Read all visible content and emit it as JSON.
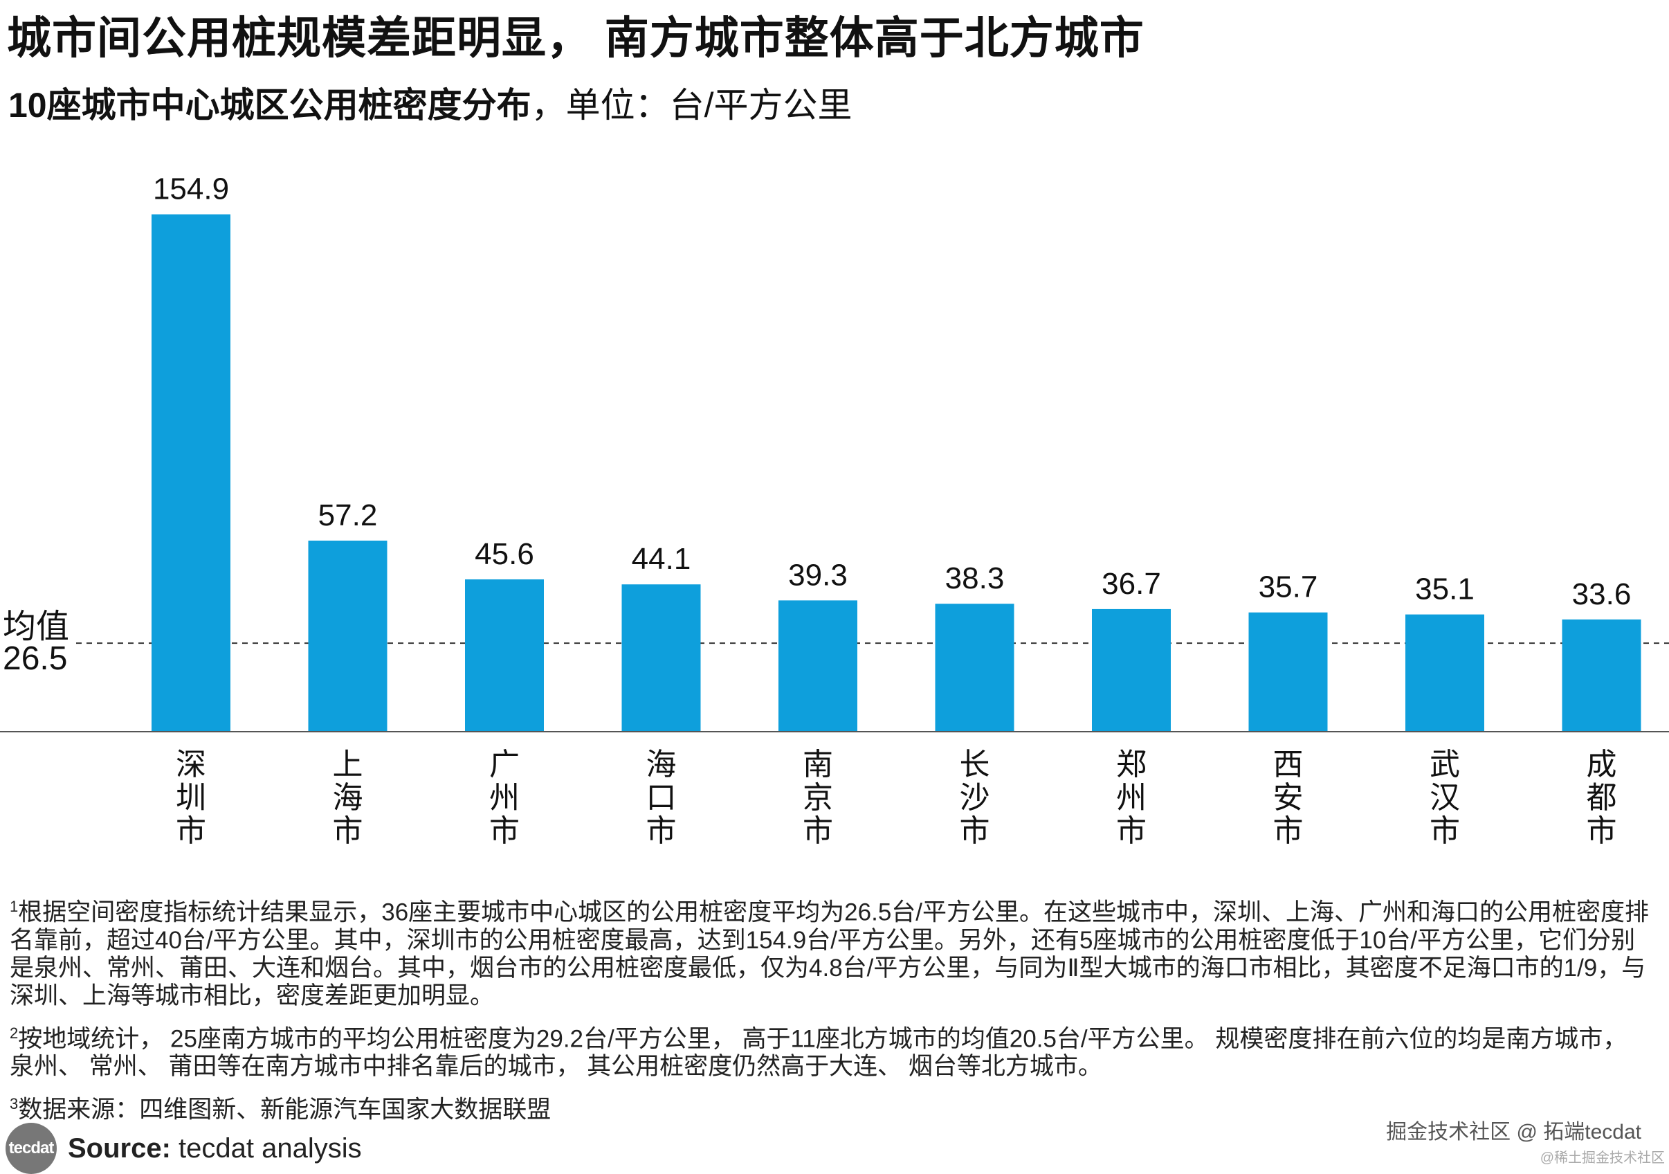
{
  "header": {
    "title": "城市间公用桩规模差距明显， 南方城市整体高于北方城市",
    "subtitle_bold": "10座城市中心城区公用桩密度分布",
    "subtitle_rest": "，单位：台/平方公里"
  },
  "chart_data": {
    "type": "bar",
    "categories": [
      "深圳市",
      "上海市",
      "广州市",
      "海口市",
      "南京市",
      "长沙市",
      "郑州市",
      "西安市",
      "武汉市",
      "成都市"
    ],
    "values": [
      154.9,
      57.2,
      45.6,
      44.1,
      39.3,
      38.3,
      36.7,
      35.7,
      35.1,
      33.6
    ],
    "value_labels": [
      "154.9",
      "57.2",
      "45.6",
      "44.1",
      "39.3",
      "38.3",
      "36.7",
      "35.7",
      "35.1",
      "33.6"
    ],
    "reference_line": {
      "label_top": "均值",
      "label_bottom": "26.5",
      "value": 26.5
    },
    "ylim": [
      0,
      160
    ],
    "bar_color": "#0e9fdc",
    "title": "10座城市中心城区公用桩密度分布",
    "ylabel": "台/平方公里"
  },
  "notes": [
    {
      "num": "1",
      "text": "根据空间密度指标统计结果显示，36座主要城市中心城区的公用桩密度平均为26.5台/平方公里。在这些城市中，深圳、上海、广州和海口的公用桩密度排名靠前，超过40台/平方公里。其中，深圳市的公用桩密度最高，达到154.9台/平方公里。另外，还有5座城市的公用桩密度低于10台/平方公里，它们分别是泉州、常州、莆田、大连和烟台。其中，烟台市的公用桩密度最低，仅为4.8台/平方公里，与同为Ⅱ型大城市的海口市相比，其密度不足海口市的1/9，与深圳、上海等城市相比，密度差距更加明显。"
    },
    {
      "num": "2",
      "text": "按地域统计， 25座南方城市的平均公用桩密度为29.2台/平方公里， 高于11座北方城市的均值20.5台/平方公里。 规模密度排在前六位的均是南方城市， 泉州、 常州、 莆田等在南方城市中排名靠后的城市， 其公用桩密度仍然高于大连、 烟台等北方城市。"
    },
    {
      "num": "3",
      "text": "数据来源：四维图新、新能源汽车国家大数据联盟"
    }
  ],
  "footer": {
    "logo_text": "tecdat",
    "source_label": "Source:",
    "source_text": " tecdat analysis",
    "watermark_main": "掘金技术社区 @ 拓端tecdat",
    "watermark_small": "@稀土掘金技术社区"
  }
}
